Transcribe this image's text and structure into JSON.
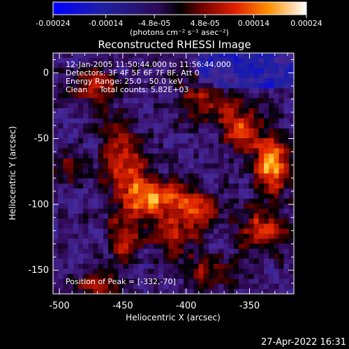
{
  "chart_data": {
    "type": "heatmap",
    "title": "Reconstructed RHESSI Image",
    "xlabel": "Heliocentric X (arcsec)",
    "ylabel": "Heliocentric Y (arcsec)",
    "xlim": [
      -505,
      -315
    ],
    "ylim": [
      -168,
      15
    ],
    "x_ticks": [
      -500,
      -450,
      -400,
      -350
    ],
    "x_tick_labels": [
      "-500",
      "-450",
      "-400",
      "-350"
    ],
    "y_ticks": [
      0,
      -50,
      -100,
      -150
    ],
    "y_tick_labels": [
      "0",
      "-50",
      "-100",
      "-150"
    ],
    "colorbar": {
      "range": [
        -0.00024,
        0.00024
      ],
      "ticks": [
        -0.00024,
        -0.00014,
        -4.8e-05,
        4.8e-05,
        0.00014,
        0.00024
      ],
      "tick_labels": [
        "-0.00024",
        "-0.00014",
        "-4.8e-05",
        "4.8e-05",
        "0.00014",
        "0.00024"
      ],
      "unit": "(photons cm⁻² s⁻¹ asec⁻²)"
    },
    "annotations": [
      "12-Jan-2005 11:50:44.000 to 11:56:44.000",
      "Detectors: 3F 4F 5F 6F 7F 8F, Att 0",
      "Energy Range: 25.0 - 50.0 keV",
      "Clean     Total counts: 5.82E+03"
    ],
    "peak_label": "Position of Peak = [-332,-70]",
    "peak_position": [
      -332,
      -70
    ],
    "sources": [
      {
        "x": -430,
        "y": -95,
        "amp": 0.00024,
        "sx": 16,
        "sy": 10
      },
      {
        "x": -448,
        "y": -70,
        "amp": 0.00016,
        "sx": 12,
        "sy": 12
      },
      {
        "x": -455,
        "y": -45,
        "amp": 0.00012,
        "sx": 10,
        "sy": 8
      },
      {
        "x": -470,
        "y": -10,
        "amp": 0.00012,
        "sx": 14,
        "sy": 10
      },
      {
        "x": -390,
        "y": -20,
        "amp": 0.00011,
        "sx": 14,
        "sy": 12
      },
      {
        "x": -357,
        "y": -40,
        "amp": 0.00015,
        "sx": 12,
        "sy": 14
      },
      {
        "x": -332,
        "y": -70,
        "amp": 0.00024,
        "sx": 10,
        "sy": 14
      },
      {
        "x": -392,
        "y": -102,
        "amp": 0.00016,
        "sx": 12,
        "sy": 10
      },
      {
        "x": -410,
        "y": -125,
        "amp": 0.00012,
        "sx": 14,
        "sy": 10
      },
      {
        "x": -340,
        "y": -120,
        "amp": 0.00015,
        "sx": 14,
        "sy": 12
      },
      {
        "x": -450,
        "y": -125,
        "amp": 0.00014,
        "sx": 8,
        "sy": 12
      },
      {
        "x": -470,
        "y": -160,
        "amp": 0.0001,
        "sx": 14,
        "sy": 8
      },
      {
        "x": -380,
        "y": -150,
        "amp": 0.00011,
        "sx": 16,
        "sy": 8
      },
      {
        "x": -490,
        "y": -70,
        "amp": 8e-05,
        "sx": 8,
        "sy": 10
      }
    ]
  },
  "timestamp": "27-Apr-2022 16:31"
}
